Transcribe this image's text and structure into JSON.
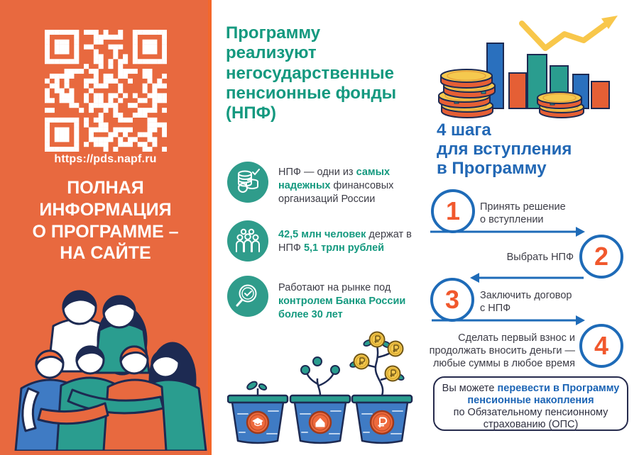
{
  "colors": {
    "panel_orange": "#e8693f",
    "accent_teal": "#14997f",
    "accent_blue": "#2268b5",
    "step_number_orange": "#f1582d",
    "arrow_yellow": "#f8c74b",
    "note_border_navy": "#262b4d"
  },
  "left_panel": {
    "qr_icon": "qr-code",
    "url": "https://pds.napf.ru",
    "title": "ПОЛНАЯ\nИНФОРМАЦИЯ\nО ПРОГРАММЕ –\nНА САЙТЕ",
    "illustration": "family-group-hug"
  },
  "middle": {
    "heading": "Программу\nреализуют\nнегосударственные\nпенсионные фонды\n(НПФ)",
    "facts": [
      {
        "icon": "coins-check-icon",
        "seg1": "НПФ — одни из ",
        "seg2": "самых надежных",
        "seg3": " финансовых организаций России"
      },
      {
        "icon": "people-group-icon",
        "seg1": "42,5 млн человек",
        "seg2": " держат в НПФ ",
        "seg3": "5,1 трлн рублей"
      },
      {
        "icon": "magnifier-check-icon",
        "seg1": "Работают на рынке под ",
        "seg2": "контролем Банка России более 30 лет"
      }
    ],
    "pots": [
      {
        "icon": "graduation-cap-icon",
        "meaning": "education"
      },
      {
        "icon": "house-icon",
        "meaning": "home"
      },
      {
        "icon": "ruble-icon",
        "meaning": "money"
      }
    ]
  },
  "right": {
    "chart_illustration": "growth-bars-coins-arrow",
    "heading": "4 шага\nдля вступления\nв Программу",
    "steps": [
      {
        "num": "1",
        "label": "Принять решение\nо вступлении"
      },
      {
        "num": "2",
        "label": "Выбрать НПФ"
      },
      {
        "num": "3",
        "label": "Заключить договор\nс НПФ"
      },
      {
        "num": "4",
        "label": "Сделать первый взнос и\nпродолжать вносить деньги —\nлюбые суммы в любое время"
      }
    ],
    "note": {
      "l1_normal": "Вы можете ",
      "l1_accent": "перевести в Программу",
      "l2_accent": "пенсионные накопления",
      "l3": "по Обязательному пенсионному",
      "l4": "страхованию (ОПС)"
    }
  }
}
